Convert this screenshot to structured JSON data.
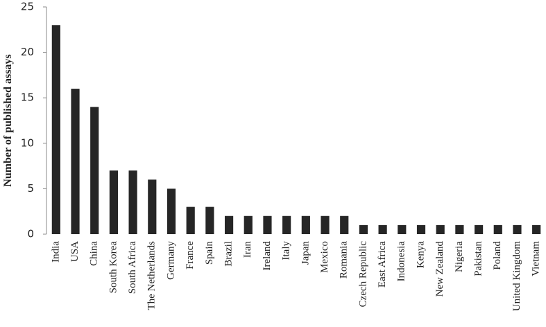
{
  "chart_data": {
    "type": "bar",
    "y_label": "Number of published assays",
    "categories": [
      "India",
      "USA",
      "China",
      "South Korea",
      "South Africa",
      "The Netherlands",
      "Germany",
      "France",
      "Spain",
      "Brazil",
      "Iran",
      "Ireland",
      "Italy",
      "Japan",
      "Mexico",
      "Romania",
      "Czech Republic",
      "East Africa",
      "Indonesia",
      "Kenya",
      "New Zealand",
      "Nigeria",
      "Pakistan",
      "Poland",
      "United Kingdom",
      "Vietnam"
    ],
    "values": [
      23,
      16,
      14,
      7,
      7,
      6,
      5,
      3,
      3,
      2,
      2,
      2,
      2,
      2,
      2,
      2,
      1,
      1,
      1,
      1,
      1,
      1,
      1,
      1,
      1,
      1
    ],
    "color": "#262626",
    "ylim": [
      0,
      25
    ],
    "yticks": [
      0,
      5,
      10,
      15,
      20,
      25
    ],
    "grid": false
  }
}
